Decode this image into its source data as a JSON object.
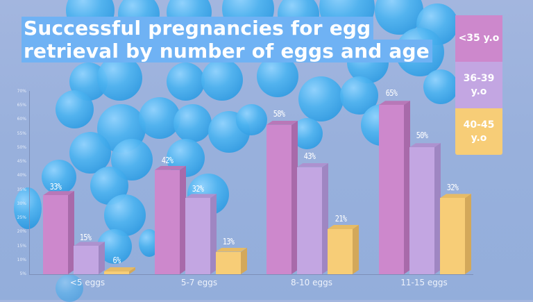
{
  "title": {
    "line1": "Successful pregnancies for egg",
    "line2": "retrieval by number of eggs and age"
  },
  "legend": [
    {
      "label_line1": "<35 y.o",
      "label_line2": "",
      "color": "#cd88cc"
    },
    {
      "label_line1": "36-39",
      "label_line2": "y.o",
      "color": "#c3a6e2"
    },
    {
      "label_line1": "40-45",
      "label_line2": "y.o",
      "color": "#f7cd77"
    }
  ],
  "y_axis": {
    "ticks": [
      "70%",
      "65%",
      "60%",
      "55%",
      "50%",
      "45%",
      "40%",
      "35%",
      "30%",
      "25%",
      "20%",
      "15%",
      "10%",
      "5%"
    ]
  },
  "bar_labels": {
    "g0": [
      "33%",
      "15%",
      "6%"
    ],
    "g1": [
      "42%",
      "32%",
      "13%"
    ],
    "g2": [
      "58%",
      "43%",
      "21%"
    ],
    "g3": [
      "65%",
      "50%",
      "32%"
    ]
  },
  "categories": [
    "<5 eggs",
    "5-7 eggs",
    "8-10 eggs",
    "11-15 eggs"
  ],
  "chart_data": {
    "type": "bar",
    "title": "Successful pregnancies for egg retrieval by number of eggs and age",
    "categories": [
      "<5 eggs",
      "5-7 eggs",
      "8-10 eggs",
      "11-15 eggs"
    ],
    "series": [
      {
        "name": "<35 y.o",
        "values": [
          33,
          42,
          58,
          65
        ],
        "color": "#cd88cc"
      },
      {
        "name": "36-39 y.o",
        "values": [
          15,
          32,
          43,
          50
        ],
        "color": "#c3a6e2"
      },
      {
        "name": "40-45 y.o",
        "values": [
          6,
          13,
          21,
          32
        ],
        "color": "#f7cd77"
      }
    ],
    "xlabel": "",
    "ylabel": "",
    "ylim": [
      5,
      70
    ],
    "y_tick_step": 5,
    "y_tick_format": "percent",
    "grid": false,
    "legend_position": "right",
    "style": "3d-bars"
  }
}
